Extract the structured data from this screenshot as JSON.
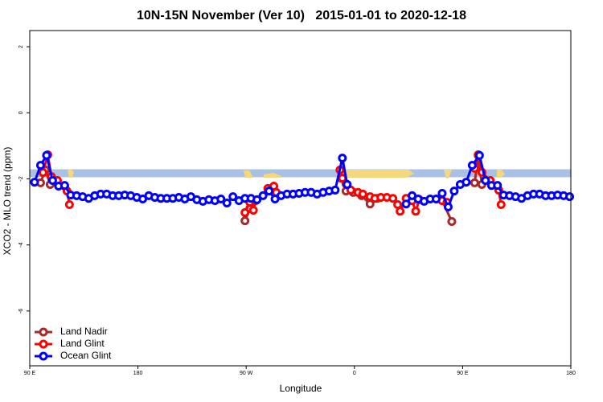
{
  "chart_data": {
    "type": "line",
    "title": "10N-15N November (Ver 10)   2015-01-01 to 2020-12-18",
    "xlabel": "Longitude",
    "ylabel": "XCO2 - MLO trend (ppm)",
    "xlim": [
      90,
      540
    ],
    "ylim": [
      -7.66,
      2.49
    ],
    "xticks": [
      {
        "value": 90,
        "label": "90 E"
      },
      {
        "value": 180,
        "label": "180"
      },
      {
        "value": 270,
        "label": "90 W"
      },
      {
        "value": 360,
        "label": "0"
      },
      {
        "value": 450,
        "label": "90 E"
      },
      {
        "value": 540,
        "label": "180"
      }
    ],
    "yticks": [
      2,
      0,
      -2,
      -4,
      -6
    ],
    "band": [
      -1.95,
      -1.71
    ],
    "band_color": "#a9c1e4",
    "legend": "bottomleft",
    "series": [
      {
        "name": "Land Nadir",
        "color": "#a52a2a",
        "x": [
          99,
          103,
          107,
          200,
          269,
          273,
          289,
          320,
          349,
          353,
          359,
          366,
          373,
          379,
          420,
          433,
          441,
          450,
          460,
          463,
          466
        ],
        "values": [
          -2.12,
          -1.73,
          -2.17,
          null,
          -3.27,
          -2.9,
          -2.34,
          null,
          -1.98,
          -2.37,
          -2.41,
          -2.51,
          -2.76,
          -2.59,
          null,
          -2.66,
          -3.29,
          null,
          -2.12,
          -1.29,
          -2.17
        ]
      },
      {
        "name": "Land Glint",
        "color": "#ff0000",
        "x": [
          101,
          105,
          108,
          113,
          119,
          121,
          123,
          200,
          269,
          273,
          276,
          278,
          288,
          293,
          295,
          320,
          348,
          350,
          353,
          357,
          363,
          367,
          373,
          377,
          382,
          387,
          392,
          396,
          398,
          403,
          408,
          411,
          414,
          430,
          433,
          437,
          450,
          460,
          463,
          466,
          473,
          480,
          482
        ],
        "values": [
          -1.81,
          -1.27,
          -1.93,
          -2.05,
          -2.22,
          -2.37,
          -2.78,
          null,
          -3.02,
          -2.71,
          -2.95,
          -2.66,
          -2.29,
          -2.22,
          -2.41,
          null,
          -1.73,
          -1.98,
          -2.15,
          -2.34,
          -2.41,
          -2.46,
          -2.54,
          -2.59,
          -2.56,
          -2.56,
          -2.59,
          -2.78,
          -2.98,
          -2.59,
          -2.66,
          -2.98,
          -2.63,
          null,
          -2.66,
          -2.71,
          null,
          -1.68,
          -1.27,
          -1.8,
          -2.05,
          -2.34,
          -2.78
        ]
      },
      {
        "name": "Ocean Glint",
        "color": "#0000ff",
        "x": [
          94,
          99,
          104,
          109,
          114,
          119,
          124,
          129,
          134,
          139,
          144,
          149,
          154,
          159,
          164,
          169,
          174,
          179,
          184,
          189,
          194,
          199,
          204,
          209,
          214,
          219,
          224,
          229,
          234,
          239,
          244,
          249,
          254,
          259,
          264,
          269,
          274,
          279,
          284,
          289,
          294,
          299,
          304,
          309,
          314,
          319,
          324,
          329,
          334,
          339,
          344,
          350,
          354,
          380,
          403,
          408,
          413,
          418,
          423,
          428,
          433,
          438,
          443,
          448,
          453,
          458,
          464,
          469,
          474,
          479,
          484,
          489,
          494,
          499,
          504,
          509,
          514,
          519,
          524,
          529,
          534,
          539
        ],
        "values": [
          -2.1,
          -1.59,
          -1.29,
          -2.05,
          -2.22,
          -2.2,
          -2.49,
          -2.51,
          -2.54,
          -2.59,
          -2.51,
          -2.46,
          -2.46,
          -2.51,
          -2.51,
          -2.49,
          -2.51,
          -2.56,
          -2.61,
          -2.51,
          -2.56,
          -2.59,
          -2.59,
          -2.59,
          -2.56,
          -2.61,
          -2.54,
          -2.63,
          -2.68,
          -2.63,
          -2.66,
          -2.61,
          -2.73,
          -2.54,
          -2.66,
          -2.59,
          -2.59,
          -2.63,
          -2.51,
          -2.37,
          -2.61,
          -2.51,
          -2.46,
          -2.46,
          -2.44,
          -2.41,
          -2.41,
          -2.46,
          -2.41,
          -2.37,
          -2.34,
          -1.37,
          -2.17,
          null,
          -2.76,
          -2.51,
          -2.61,
          -2.68,
          -2.61,
          -2.61,
          -2.44,
          -2.85,
          -2.37,
          -2.17,
          -2.1,
          -1.59,
          -1.29,
          -2.05,
          -2.2,
          -2.2,
          -2.49,
          -2.51,
          -2.54,
          -2.59,
          -2.51,
          -2.46,
          -2.46,
          -2.51,
          -2.51,
          -2.49,
          -2.51,
          -2.54
        ]
      }
    ]
  }
}
